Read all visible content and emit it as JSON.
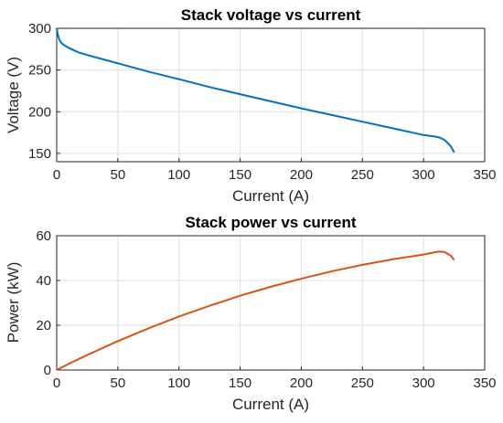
{
  "chart_data": [
    {
      "type": "line",
      "title": "Stack voltage vs current",
      "xlabel": "Current (A)",
      "ylabel": "Voltage (V)",
      "xlim": [
        0,
        350
      ],
      "ylim": [
        140,
        300
      ],
      "xticks": [
        0,
        50,
        100,
        150,
        200,
        250,
        300,
        350
      ],
      "yticks": [
        150,
        200,
        250,
        300
      ],
      "grid": true,
      "series": [
        {
          "color": "#0072BD",
          "x": [
            0,
            1,
            2,
            3,
            5,
            8,
            12,
            18,
            25,
            35,
            50,
            75,
            100,
            125,
            150,
            175,
            200,
            225,
            250,
            275,
            300,
            310,
            313,
            316,
            318,
            320,
            322,
            324,
            325
          ],
          "y": [
            300,
            292,
            287,
            284,
            281,
            278,
            275,
            271,
            268,
            264,
            258,
            248,
            239,
            229.5,
            221,
            212.5,
            204,
            196,
            188,
            180,
            172,
            170,
            169,
            167,
            165,
            162,
            159,
            154,
            151
          ]
        }
      ]
    },
    {
      "type": "line",
      "title": "Stack power vs current",
      "xlabel": "Current (A)",
      "ylabel": "Power (kW)",
      "xlim": [
        0,
        350
      ],
      "ylim": [
        0,
        60
      ],
      "xticks": [
        0,
        50,
        100,
        150,
        200,
        250,
        300,
        350
      ],
      "yticks": [
        0,
        20,
        40,
        60
      ],
      "grid": true,
      "series": [
        {
          "color": "#D95319",
          "x": [
            0,
            10,
            25,
            50,
            75,
            100,
            125,
            150,
            175,
            200,
            225,
            250,
            275,
            300,
            310,
            313,
            316,
            318,
            320,
            322,
            324,
            325
          ],
          "y": [
            0,
            2.8,
            6.7,
            12.9,
            18.6,
            23.9,
            28.7,
            33.2,
            37.2,
            40.8,
            44.1,
            47.0,
            49.5,
            51.6,
            52.7,
            52.9,
            52.8,
            52.5,
            51.8,
            51.2,
            49.9,
            49.1
          ]
        }
      ]
    }
  ]
}
